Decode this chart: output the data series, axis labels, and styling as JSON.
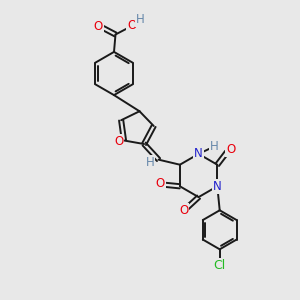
{
  "bg_color": "#e8e8e8",
  "bond_color": "#1a1a1a",
  "atom_colors": {
    "O": "#e8000d",
    "N": "#2222cc",
    "Cl": "#22bb22",
    "H": "#6688aa",
    "C": "#1a1a1a"
  },
  "font_size": 8.5,
  "lw": 1.4,
  "dbo": 0.12
}
